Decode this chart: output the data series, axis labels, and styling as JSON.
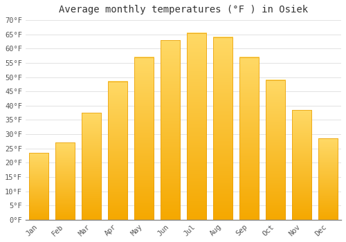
{
  "title": "Average monthly temperatures (°F ) in Osiek",
  "months": [
    "Jan",
    "Feb",
    "Mar",
    "Apr",
    "May",
    "Jun",
    "Jul",
    "Aug",
    "Sep",
    "Oct",
    "Nov",
    "Dec"
  ],
  "values": [
    23.5,
    27.0,
    37.5,
    48.5,
    57.0,
    63.0,
    65.5,
    64.0,
    57.0,
    49.0,
    38.5,
    28.5
  ],
  "bar_color_bottom": "#F5A800",
  "bar_color_top": "#FFD966",
  "bar_edge_color": "#E89B00",
  "background_color": "#FFFFFF",
  "grid_color": "#DDDDDD",
  "ylim": [
    0,
    70
  ],
  "title_fontsize": 10,
  "tick_fontsize": 7.5,
  "bar_width": 0.75
}
